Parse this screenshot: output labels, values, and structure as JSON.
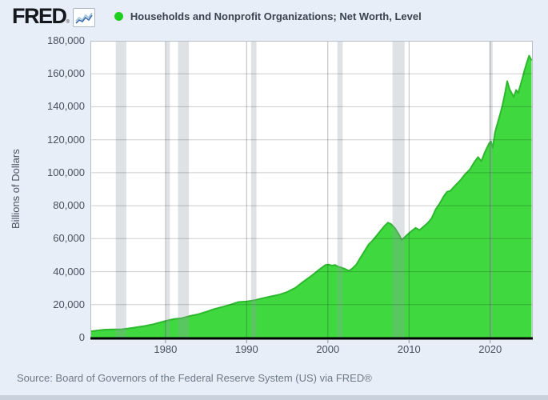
{
  "header": {
    "logo_text": "FRED",
    "logo_registered_mark": "®",
    "series_title": "Households and Nonprofit Organizations; Net Worth, Level"
  },
  "footer": {
    "source_text": "Source: Board of Governors of the Federal Reserve System (US) via FRED®"
  },
  "colors": {
    "background": "#e8eef7",
    "plot_background": "#ffffff",
    "area_fill": "#3fd93f",
    "area_line": "#2db82d",
    "legend_dot": "#1dce1d",
    "recession_band": "rgba(150,158,168,0.30)",
    "gridline": "rgba(0,0,0,0.20)",
    "decade_gridline": "rgba(25,35,45,0.30)",
    "axis_line": "#000000",
    "plot_border": "#b9bfc6",
    "tick_mark": "#8a929c"
  },
  "chart_data": {
    "type": "area",
    "title": "Households and Nonprofit Organizations; Net Worth, Level",
    "xlabel": "",
    "ylabel": "Billions of Dollars",
    "x_range": [
      1970.75,
      2025.25
    ],
    "ylim": [
      0,
      180000
    ],
    "grid": true,
    "legend_position": "top",
    "y_ticks": [
      {
        "value": 0,
        "label": "0"
      },
      {
        "value": 20000,
        "label": "20,000"
      },
      {
        "value": 40000,
        "label": "40,000"
      },
      {
        "value": 60000,
        "label": "60,000"
      },
      {
        "value": 80000,
        "label": "80,000"
      },
      {
        "value": 100000,
        "label": "100,000"
      },
      {
        "value": 120000,
        "label": "120,000"
      },
      {
        "value": 140000,
        "label": "140,000"
      },
      {
        "value": 160000,
        "label": "160,000"
      },
      {
        "value": 180000,
        "label": "180,000"
      }
    ],
    "x_ticks": [
      {
        "value": 1980,
        "label": "1980"
      },
      {
        "value": 1990,
        "label": "1990"
      },
      {
        "value": 2000,
        "label": "2000"
      },
      {
        "value": 2010,
        "label": "2010"
      },
      {
        "value": 2020,
        "label": "2020"
      }
    ],
    "recessions": [
      [
        1973.87,
        1975.17
      ],
      [
        1980.04,
        1980.54
      ],
      [
        1981.54,
        1982.88
      ],
      [
        1990.54,
        1991.21
      ],
      [
        2001.17,
        2001.83
      ],
      [
        2007.96,
        2009.46
      ],
      [
        2019.9,
        2020.3
      ]
    ],
    "series": [
      {
        "name": "Households and Nonprofit Organizations; Net Worth, Level",
        "units": "Billions of Dollars",
        "points": [
          [
            1970.75,
            3800
          ],
          [
            1971.5,
            4200
          ],
          [
            1972.5,
            4800
          ],
          [
            1973.5,
            5000
          ],
          [
            1974.5,
            5000
          ],
          [
            1975.5,
            5600
          ],
          [
            1976.5,
            6300
          ],
          [
            1977.5,
            7100
          ],
          [
            1978.5,
            8100
          ],
          [
            1979.5,
            9400
          ],
          [
            1980.25,
            10400
          ],
          [
            1981,
            11200
          ],
          [
            1982,
            11800
          ],
          [
            1983,
            13100
          ],
          [
            1984,
            14100
          ],
          [
            1985,
            15600
          ],
          [
            1986,
            17300
          ],
          [
            1987,
            18600
          ],
          [
            1988,
            20000
          ],
          [
            1989,
            21600
          ],
          [
            1990,
            21900
          ],
          [
            1991,
            22700
          ],
          [
            1992,
            23900
          ],
          [
            1993,
            25000
          ],
          [
            1994,
            26000
          ],
          [
            1995,
            27700
          ],
          [
            1996,
            30200
          ],
          [
            1997,
            34000
          ],
          [
            1998,
            37500
          ],
          [
            1999,
            41500
          ],
          [
            1999.7,
            44000
          ],
          [
            2000.1,
            44300
          ],
          [
            2000.5,
            43700
          ],
          [
            2000.9,
            44000
          ],
          [
            2001.3,
            43000
          ],
          [
            2001.7,
            42400
          ],
          [
            2002.1,
            41700
          ],
          [
            2002.6,
            40500
          ],
          [
            2003,
            41800
          ],
          [
            2003.5,
            44200
          ],
          [
            2004,
            48300
          ],
          [
            2004.5,
            52300
          ],
          [
            2005,
            56300
          ],
          [
            2005.5,
            58800
          ],
          [
            2006,
            61800
          ],
          [
            2006.5,
            64800
          ],
          [
            2007,
            67800
          ],
          [
            2007.4,
            69700
          ],
          [
            2007.8,
            68800
          ],
          [
            2008.3,
            66200
          ],
          [
            2008.8,
            62200
          ],
          [
            2009.1,
            59200
          ],
          [
            2009.6,
            61500
          ],
          [
            2010.2,
            64200
          ],
          [
            2010.8,
            66500
          ],
          [
            2011.3,
            65200
          ],
          [
            2011.8,
            67300
          ],
          [
            2012.3,
            69500
          ],
          [
            2012.8,
            72500
          ],
          [
            2013.3,
            77800
          ],
          [
            2013.8,
            81500
          ],
          [
            2014.3,
            85900
          ],
          [
            2014.7,
            88500
          ],
          [
            2015.1,
            89000
          ],
          [
            2015.7,
            92300
          ],
          [
            2016.3,
            95300
          ],
          [
            2016.9,
            99000
          ],
          [
            2017.5,
            102000
          ],
          [
            2018,
            106000
          ],
          [
            2018.5,
            109500
          ],
          [
            2018.9,
            107000
          ],
          [
            2019.4,
            113000
          ],
          [
            2019.9,
            118000
          ],
          [
            2020.1,
            119000
          ],
          [
            2020.3,
            115000
          ],
          [
            2020.6,
            124500
          ],
          [
            2020.9,
            130000
          ],
          [
            2021.2,
            135000
          ],
          [
            2021.5,
            140500
          ],
          [
            2021.8,
            147500
          ],
          [
            2022.1,
            155500
          ],
          [
            2022.4,
            150500
          ],
          [
            2022.9,
            146000
          ],
          [
            2023.2,
            150200
          ],
          [
            2023.45,
            148300
          ],
          [
            2023.9,
            156000
          ],
          [
            2024.2,
            161500
          ],
          [
            2024.5,
            166500
          ],
          [
            2024.8,
            171000
          ],
          [
            2025.1,
            168000
          ]
        ]
      }
    ]
  }
}
